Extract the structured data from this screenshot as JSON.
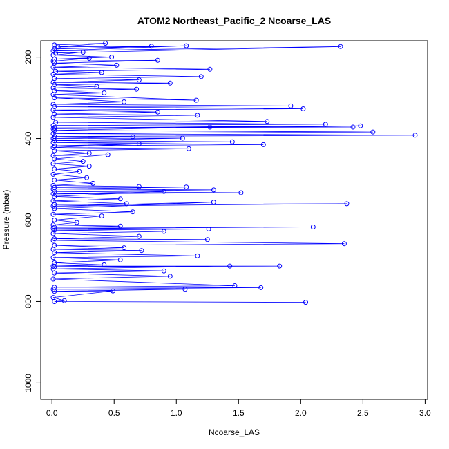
{
  "chart_data": {
    "type": "scatter",
    "title": "ATOM2 Northeast_Pacific_2 Ncoarse_LAS",
    "xlabel": "Ncoarse_LAS",
    "ylabel": "Pressure (mbar)",
    "xlim": [
      -0.09,
      3.02
    ],
    "ylim": [
      1040,
      160
    ],
    "y_reversed": true,
    "grid": false,
    "x_ticks": [
      "0.0",
      "0.5",
      "1.0",
      "1.5",
      "2.0",
      "2.5",
      "3.0"
    ],
    "y_ticks": [
      "200",
      "400",
      "600",
      "800",
      "1000"
    ],
    "series": [
      {
        "color": "#0000ff",
        "marker": "open-circle",
        "line": true,
        "points": [
          [
            0.02,
            170
          ],
          [
            0.43,
            166
          ],
          [
            0.05,
            175
          ],
          [
            0.8,
            173
          ],
          [
            0.02,
            180
          ],
          [
            1.08,
            172
          ],
          [
            0.01,
            185
          ],
          [
            2.32,
            174
          ],
          [
            0.03,
            190
          ],
          [
            0.25,
            188
          ],
          [
            0.01,
            195
          ],
          [
            0.48,
            200
          ],
          [
            0.02,
            205
          ],
          [
            0.3,
            203
          ],
          [
            0.01,
            210
          ],
          [
            0.85,
            208
          ],
          [
            0.02,
            215
          ],
          [
            0.52,
            220
          ],
          [
            0.01,
            225
          ],
          [
            1.27,
            230
          ],
          [
            0.03,
            235
          ],
          [
            0.4,
            238
          ],
          [
            0.01,
            242
          ],
          [
            1.2,
            248
          ],
          [
            0.02,
            253
          ],
          [
            0.7,
            256
          ],
          [
            0.01,
            262
          ],
          [
            0.95,
            264
          ],
          [
            0.02,
            268
          ],
          [
            0.36,
            272
          ],
          [
            0.01,
            276
          ],
          [
            0.68,
            279
          ],
          [
            0.02,
            283
          ],
          [
            0.42,
            288
          ],
          [
            0.01,
            292
          ],
          [
            1.16,
            306
          ],
          [
            0.02,
            300
          ],
          [
            0.58,
            310
          ],
          [
            0.01,
            316
          ],
          [
            1.92,
            320
          ],
          [
            0.02,
            322
          ],
          [
            2.02,
            327
          ],
          [
            0.01,
            330
          ],
          [
            0.85,
            335
          ],
          [
            0.02,
            340
          ],
          [
            1.17,
            343
          ],
          [
            0.01,
            348
          ],
          [
            1.73,
            358
          ],
          [
            0.03,
            360
          ],
          [
            2.2,
            365
          ],
          [
            0.01,
            368
          ],
          [
            2.42,
            372
          ],
          [
            0.02,
            374
          ],
          [
            2.48,
            369
          ],
          [
            0.01,
            376
          ],
          [
            1.27,
            372
          ],
          [
            0.02,
            380
          ],
          [
            2.58,
            384
          ],
          [
            0.01,
            388
          ],
          [
            2.92,
            392
          ],
          [
            0.02,
            395
          ],
          [
            0.65,
            396
          ],
          [
            0.01,
            400
          ],
          [
            1.05,
            399
          ],
          [
            0.02,
            405
          ],
          [
            1.45,
            408
          ],
          [
            0.01,
            410
          ],
          [
            1.7,
            415
          ],
          [
            0.02,
            418
          ],
          [
            0.7,
            413
          ],
          [
            0.01,
            422
          ],
          [
            1.1,
            425
          ],
          [
            0.02,
            430
          ],
          [
            0.3,
            436
          ],
          [
            0.01,
            442
          ],
          [
            0.45,
            440
          ],
          [
            0.02,
            450
          ],
          [
            0.25,
            456
          ],
          [
            0.01,
            462
          ],
          [
            0.3,
            468
          ],
          [
            0.02,
            475
          ],
          [
            0.22,
            481
          ],
          [
            0.01,
            488
          ],
          [
            0.28,
            496
          ],
          [
            0.02,
            502
          ],
          [
            0.33,
            510
          ],
          [
            0.01,
            515
          ],
          [
            0.7,
            518
          ],
          [
            0.02,
            520
          ],
          [
            1.08,
            519
          ],
          [
            0.01,
            524
          ],
          [
            1.3,
            526
          ],
          [
            0.02,
            530
          ],
          [
            1.52,
            533
          ],
          [
            0.01,
            536
          ],
          [
            0.9,
            530
          ],
          [
            0.02,
            542
          ],
          [
            0.55,
            548
          ],
          [
            0.01,
            553
          ],
          [
            0.6,
            560
          ],
          [
            0.02,
            562
          ],
          [
            2.37,
            560
          ],
          [
            0.01,
            566
          ],
          [
            1.3,
            556
          ],
          [
            0.02,
            572
          ],
          [
            0.65,
            580
          ],
          [
            0.01,
            586
          ],
          [
            0.4,
            590
          ],
          [
            0.02,
            600
          ],
          [
            0.2,
            606
          ],
          [
            0.01,
            612
          ],
          [
            0.55,
            615
          ],
          [
            0.02,
            618
          ],
          [
            2.1,
            617
          ],
          [
            0.01,
            621
          ],
          [
            1.26,
            622
          ],
          [
            0.02,
            625
          ],
          [
            0.9,
            628
          ],
          [
            0.01,
            633
          ],
          [
            0.7,
            640
          ],
          [
            0.02,
            646
          ],
          [
            1.25,
            648
          ],
          [
            0.01,
            650
          ],
          [
            2.35,
            658
          ],
          [
            0.02,
            662
          ],
          [
            0.58,
            668
          ],
          [
            0.01,
            672
          ],
          [
            0.72,
            675
          ],
          [
            0.02,
            680
          ],
          [
            1.17,
            688
          ],
          [
            0.01,
            692
          ],
          [
            0.55,
            698
          ],
          [
            0.02,
            705
          ],
          [
            0.42,
            710
          ],
          [
            0.01,
            713
          ],
          [
            1.83,
            713
          ],
          [
            0.02,
            715
          ],
          [
            1.43,
            713
          ],
          [
            0.01,
            720
          ],
          [
            0.9,
            725
          ],
          [
            0.02,
            730
          ],
          [
            0.95,
            738
          ],
          [
            0.01,
            745
          ],
          [
            1.47,
            761
          ],
          [
            0.02,
            765
          ],
          [
            1.68,
            766
          ],
          [
            0.01,
            770
          ],
          [
            1.07,
            770
          ],
          [
            0.02,
            775
          ],
          [
            0.49,
            774
          ],
          [
            0.01,
            790
          ],
          [
            0.1,
            798
          ],
          [
            0.02,
            800
          ],
          [
            2.04,
            802
          ]
        ]
      }
    ]
  }
}
